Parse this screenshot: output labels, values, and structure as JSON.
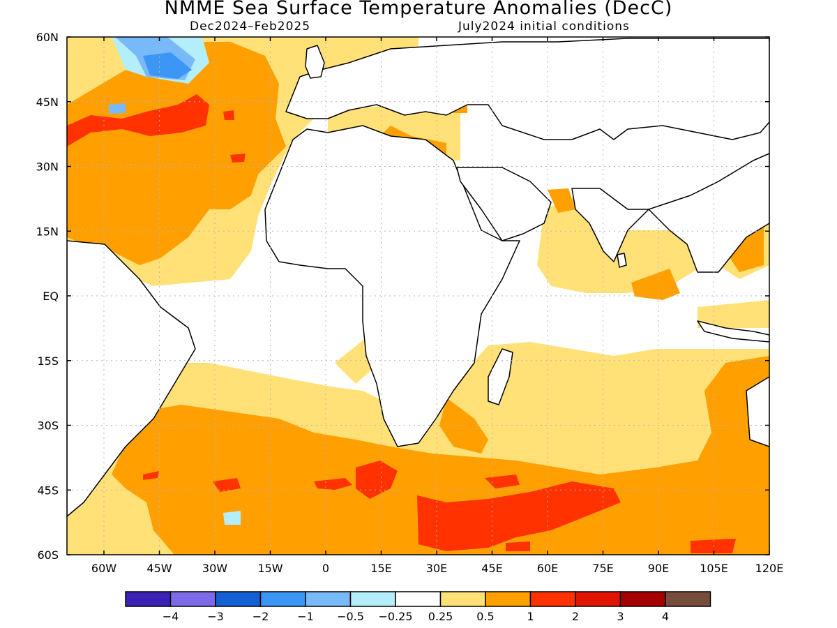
{
  "title": "NMME Sea Surface Temperature Anomalies (DecC)",
  "valid_period": "Dec2024–Feb2025",
  "initial_conditions": "July2024 initial conditions",
  "map": {
    "lat_labels": [
      "60N",
      "45N",
      "30N",
      "15N",
      "EQ",
      "15S",
      "30S",
      "45S",
      "60S"
    ],
    "lon_labels": [
      "60W",
      "45W",
      "30W",
      "15W",
      "0",
      "15E",
      "30E",
      "45E",
      "60E",
      "75E",
      "90E",
      "105E",
      "120E"
    ]
  },
  "colorbar": {
    "colors": [
      "#3b22b4",
      "#7d6ae8",
      "#1460d2",
      "#3b96f5",
      "#78b9fa",
      "#b4eefa",
      "#ffffff",
      "#ffe178",
      "#ffa000",
      "#ff3200",
      "#e11400",
      "#a50000",
      "#784c3c"
    ],
    "labels": [
      "−4",
      "−3",
      "−2",
      "−1",
      "−0.5",
      "−0.25",
      "0.25",
      "0.5",
      "1",
      "2",
      "3",
      "4"
    ]
  }
}
